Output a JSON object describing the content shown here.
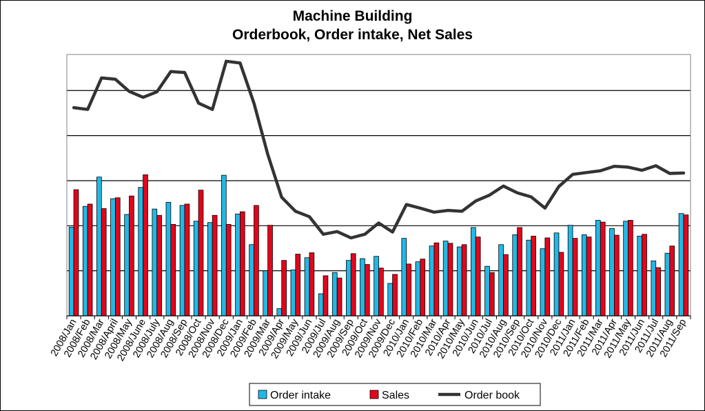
{
  "chart_data": {
    "type": "bar",
    "title_lines": [
      "Machine Building",
      "Orderbook, Order intake, Net Sales"
    ],
    "xlabel": "",
    "ylabel": "",
    "ylim": [
      0,
      5.8
    ],
    "grid": true,
    "legend_position": "bottom",
    "categories": [
      "2008/Jan",
      "2008/Feb",
      "2008/Mar",
      "2008/April",
      "2008/May",
      "2008/June",
      "2008/July",
      "2008/Aug",
      "2008/Sep",
      "2008/Oct",
      "2008/Nov",
      "2008/Dec",
      "2009/Jan",
      "2009/Feb",
      "2009/Mar",
      "2009/Apr",
      "2009/May",
      "2009/Jun",
      "2009/Jul",
      "2009/Aug",
      "2009/Sep",
      "2009/Oct",
      "2009/Nov",
      "2009/Dec",
      "2010/Jan",
      "2010/Feb",
      "2010/Mar",
      "2010/Apr",
      "2010/May",
      "2010/Jun",
      "2010/Jul",
      "2010/Aug",
      "2010/Sep",
      "2010/Oct",
      "2010/Nov",
      "2010/Dec",
      "2011/Jan",
      "2011/Feb",
      "2011/Mar",
      "2011/Apr",
      "2011/May",
      "2011/Jun",
      "2011/Jul",
      "2011/Aug",
      "2011/Sep"
    ],
    "series": [
      {
        "name": "Order intake",
        "type": "bar",
        "color": "#22B8E6",
        "values": [
          1.97,
          2.43,
          3.08,
          2.6,
          2.25,
          2.85,
          2.37,
          2.52,
          2.45,
          2.1,
          2.07,
          3.12,
          2.26,
          1.58,
          1.0,
          0.16,
          1.02,
          1.29,
          0.49,
          0.96,
          1.23,
          1.27,
          1.32,
          0.72,
          1.72,
          1.2,
          1.55,
          1.66,
          1.53,
          1.96,
          1.1,
          1.58,
          1.8,
          1.68,
          1.49,
          1.84,
          2.01,
          1.8,
          2.12,
          1.94,
          2.1,
          1.77,
          1.22,
          1.39,
          2.27
        ]
      },
      {
        "name": "Sales",
        "type": "bar",
        "color": "#E3051B",
        "values": [
          2.8,
          2.48,
          2.38,
          2.62,
          2.66,
          3.13,
          2.23,
          2.03,
          2.48,
          2.79,
          2.23,
          2.03,
          2.31,
          2.45,
          2.01,
          1.23,
          1.37,
          1.4,
          0.89,
          0.84,
          1.38,
          1.14,
          1.06,
          0.92,
          1.15,
          1.26,
          1.62,
          1.61,
          1.58,
          1.75,
          0.96,
          1.36,
          1.96,
          1.77,
          1.73,
          1.41,
          1.72,
          1.75,
          2.08,
          1.79,
          2.12,
          1.81,
          1.07,
          1.55,
          2.24
        ]
      },
      {
        "name": "Order book",
        "type": "line",
        "color": "#333333",
        "values": [
          4.62,
          4.58,
          5.28,
          5.25,
          4.98,
          4.85,
          4.97,
          5.42,
          5.4,
          4.72,
          4.58,
          5.65,
          5.61,
          4.72,
          3.58,
          2.63,
          2.32,
          2.2,
          1.81,
          1.87,
          1.73,
          1.81,
          2.06,
          1.86,
          2.47,
          2.39,
          2.3,
          2.34,
          2.32,
          2.55,
          2.68,
          2.88,
          2.73,
          2.64,
          2.39,
          2.87,
          3.14,
          3.18,
          3.22,
          3.32,
          3.3,
          3.23,
          3.33,
          3.16,
          3.17
        ]
      }
    ]
  }
}
